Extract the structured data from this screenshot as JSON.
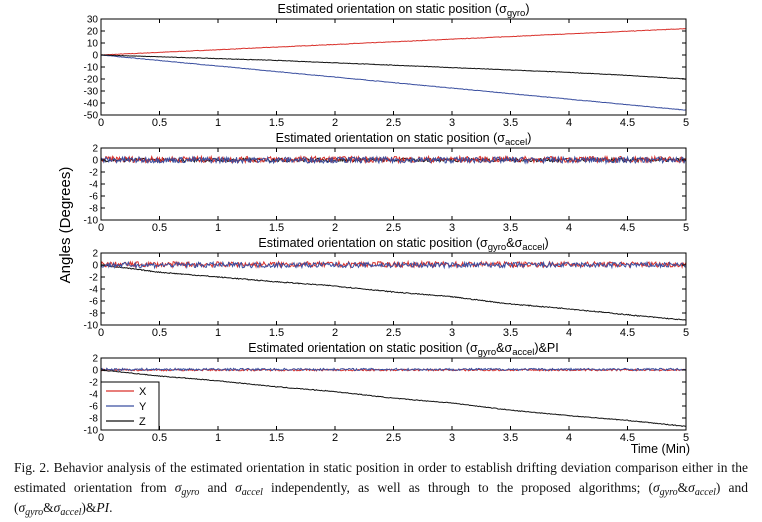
{
  "chart_data": [
    {
      "type": "line",
      "title": {
        "main": "Estimated orientation on static position (",
        "sigma": "σ",
        "sub1": "gyro",
        "mid": "",
        "sigma2": "",
        "sub2": "",
        "tail": ")"
      },
      "xlim": [
        0,
        5
      ],
      "ylim": [
        -50,
        30
      ],
      "xticks": [
        "0",
        "0.5",
        "1",
        "1.5",
        "2",
        "2.5",
        "3",
        "3.5",
        "4",
        "4.5",
        "5"
      ],
      "yticks": [
        "30",
        "20",
        "10",
        "0",
        "-10",
        "-20",
        "-30",
        "-40",
        "-50"
      ],
      "x": [
        0,
        0.5,
        1,
        1.5,
        2,
        2.5,
        3,
        3.5,
        4,
        4.5,
        5
      ],
      "series": [
        {
          "name": "X",
          "color": "#d9302a",
          "values": [
            0,
            2.2,
            4.4,
            6.6,
            8.8,
            11,
            13.2,
            15.4,
            17.6,
            19.8,
            22
          ],
          "noise": 0.2
        },
        {
          "name": "Y",
          "color": "#3a4fa0",
          "values": [
            0,
            -4.6,
            -9.2,
            -13.8,
            -18.4,
            -23,
            -27.6,
            -32.2,
            -36.8,
            -41.4,
            -46
          ],
          "noise": 0.2
        },
        {
          "name": "Z",
          "color": "#111111",
          "values": [
            0,
            -1.5,
            -3,
            -4.5,
            -6.5,
            -8.5,
            -10.5,
            -12.5,
            -14.5,
            -17,
            -20
          ],
          "noise": 0.2
        }
      ]
    },
    {
      "type": "line",
      "title": {
        "main": "Estimated orientation on static position (",
        "sigma": "σ",
        "sub1": "accel",
        "mid": "",
        "sigma2": "",
        "sub2": "",
        "tail": ")"
      },
      "xlim": [
        0,
        5
      ],
      "ylim": [
        -10,
        2
      ],
      "xticks": [
        "0",
        "0.5",
        "1",
        "1.5",
        "2",
        "2.5",
        "3",
        "3.5",
        "4",
        "4.5",
        "5"
      ],
      "yticks": [
        "2",
        "0",
        "-2",
        "-4",
        "-6",
        "-8",
        "-10"
      ],
      "x": [
        0,
        0.5,
        1,
        1.5,
        2,
        2.5,
        3,
        3.5,
        4,
        4.5,
        5
      ],
      "series": [
        {
          "name": "Z",
          "color": "#111111",
          "values": [
            0,
            0,
            0,
            0,
            0,
            0,
            0,
            0,
            0,
            0,
            0
          ],
          "noise": 0.3
        },
        {
          "name": "X",
          "color": "#d9302a",
          "values": [
            0.1,
            0.1,
            0.1,
            0.1,
            0.1,
            0.1,
            0.1,
            0.1,
            0.1,
            0.1,
            0.1
          ],
          "noise": 0.5
        },
        {
          "name": "Y",
          "color": "#3a4fa0",
          "values": [
            0,
            0,
            0,
            0,
            0,
            0,
            0,
            0,
            0,
            0,
            0
          ],
          "noise": 0.5
        }
      ]
    },
    {
      "type": "line",
      "title": {
        "main": "Estimated orientation on static position (",
        "sigma": "σ",
        "sub1": "gyro",
        "mid": "&",
        "sigma2": "σ",
        "sub2": "accel",
        "tail": ")"
      },
      "xlim": [
        0,
        5
      ],
      "ylim": [
        -10,
        2
      ],
      "xticks": [
        "0",
        "0.5",
        "1",
        "1.5",
        "2",
        "2.5",
        "3",
        "3.5",
        "4",
        "4.5",
        "5"
      ],
      "yticks": [
        "2",
        "0",
        "-2",
        "-4",
        "-6",
        "-8",
        "-10"
      ],
      "x": [
        0,
        0.5,
        1,
        1.5,
        2,
        2.5,
        3,
        3.5,
        4,
        4.5,
        5
      ],
      "series": [
        {
          "name": "Z",
          "color": "#111111",
          "values": [
            0,
            -1.2,
            -2,
            -2.8,
            -3.5,
            -4.5,
            -5.3,
            -6.5,
            -7.3,
            -8.3,
            -9.2
          ],
          "noise": 0.08
        },
        {
          "name": "X",
          "color": "#d9302a",
          "values": [
            0.1,
            0.1,
            0.1,
            0.1,
            0.1,
            0.1,
            0.1,
            0.1,
            0.1,
            0.1,
            0.1
          ],
          "noise": 0.45
        },
        {
          "name": "Y",
          "color": "#3a4fa0",
          "values": [
            0,
            0,
            0,
            0,
            0,
            0,
            0,
            0,
            0,
            0,
            0
          ],
          "noise": 0.45
        }
      ]
    },
    {
      "type": "line",
      "title": {
        "main": "Estimated orientation on static position (",
        "sigma": "σ",
        "sub1": "gyro",
        "mid": "&",
        "sigma2": "σ",
        "sub2": "accel",
        "tail": ")&PI"
      },
      "xlim": [
        0,
        5
      ],
      "ylim": [
        -10,
        2
      ],
      "xticks": [
        "0",
        "0.5",
        "1",
        "1.5",
        "2",
        "2.5",
        "3",
        "3.5",
        "4",
        "4.5",
        "5"
      ],
      "yticks": [
        "2",
        "0",
        "-2",
        "-4",
        "-6",
        "-8",
        "-10"
      ],
      "xlabel": "Time (Min)",
      "legend": {
        "placement": "bottom-left",
        "entries": [
          "X",
          "Y",
          "Z"
        ]
      },
      "x": [
        0,
        0.5,
        1,
        1.5,
        2,
        2.5,
        3,
        3.5,
        4,
        4.5,
        5
      ],
      "series": [
        {
          "name": "X",
          "color": "#d9302a",
          "values": [
            0,
            0,
            0,
            0,
            0,
            0,
            0,
            0,
            0,
            0,
            0
          ],
          "noise": 0.15
        },
        {
          "name": "Y",
          "color": "#3a4fa0",
          "values": [
            0.1,
            0.1,
            0.1,
            0.1,
            0.1,
            0.1,
            0.1,
            0.1,
            0.1,
            0.1,
            0.1
          ],
          "noise": 0.18
        },
        {
          "name": "Z",
          "color": "#111111",
          "values": [
            0,
            -1,
            -1.8,
            -2.8,
            -3.6,
            -4.7,
            -5.5,
            -6.7,
            -7.6,
            -8.4,
            -9.4
          ],
          "noise": 0.06
        }
      ]
    }
  ],
  "ylabel": "Angles (Degrees)",
  "caption": {
    "p1": "Fig. 2. Behavior analysis of the estimated orientation in static position in order to establish drifting deviation comparison either in the estimated orientation from ",
    "s1": "σ",
    "s1sub": "gyro",
    "p2": " and ",
    "s2": "σ",
    "s2sub": "accel",
    "p3": " independently, as well as through to the proposed algorithms; (",
    "s3": "σ",
    "s3sub": "gyro",
    "p4": "&",
    "s4": "σ",
    "s4sub": "accel",
    "p5": ") and (",
    "s5": "σ",
    "s5sub": "gyro",
    "p6": "&",
    "s6": "σ",
    "s6sub": "accel",
    "p7": ")&",
    "p8": "PI",
    "p9": "."
  }
}
